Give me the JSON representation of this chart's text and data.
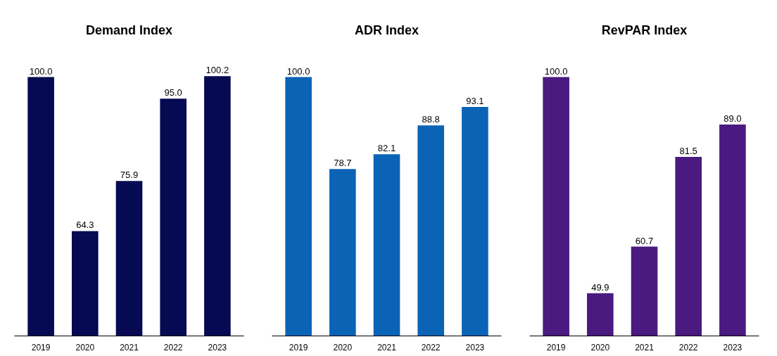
{
  "chart_data": [
    {
      "type": "bar",
      "title": "Demand Index",
      "categories": [
        "2019",
        "2020",
        "2021",
        "2022",
        "2023"
      ],
      "values": [
        100.0,
        64.3,
        75.9,
        95.0,
        100.2
      ],
      "value_labels": [
        "100.0",
        "64.3",
        "75.9",
        "95.0",
        "100.2"
      ],
      "color": "#050a52",
      "ylim": [
        40,
        100.2
      ],
      "tick_labels": "x",
      "grid": false
    },
    {
      "type": "bar",
      "title": "ADR Index",
      "categories": [
        "2019",
        "2020",
        "2021",
        "2022",
        "2023"
      ],
      "values": [
        100.0,
        78.7,
        82.1,
        88.8,
        93.1
      ],
      "value_labels": [
        "100.0",
        "78.7",
        "82.1",
        "88.8",
        "93.1"
      ],
      "color": "#0b63b6",
      "ylim": [
        40,
        100.2
      ],
      "tick_labels": "x",
      "grid": false
    },
    {
      "type": "bar",
      "title": "RevPAR Index",
      "categories": [
        "2019",
        "2020",
        "2021",
        "2022",
        "2023"
      ],
      "values": [
        100.0,
        49.9,
        60.7,
        81.5,
        89.0
      ],
      "value_labels": [
        "100.0",
        "49.9",
        "60.7",
        "81.5",
        "89.0"
      ],
      "color": "#4a1a80",
      "ylim": [
        40,
        100.2
      ],
      "tick_labels": "x",
      "grid": false
    }
  ]
}
